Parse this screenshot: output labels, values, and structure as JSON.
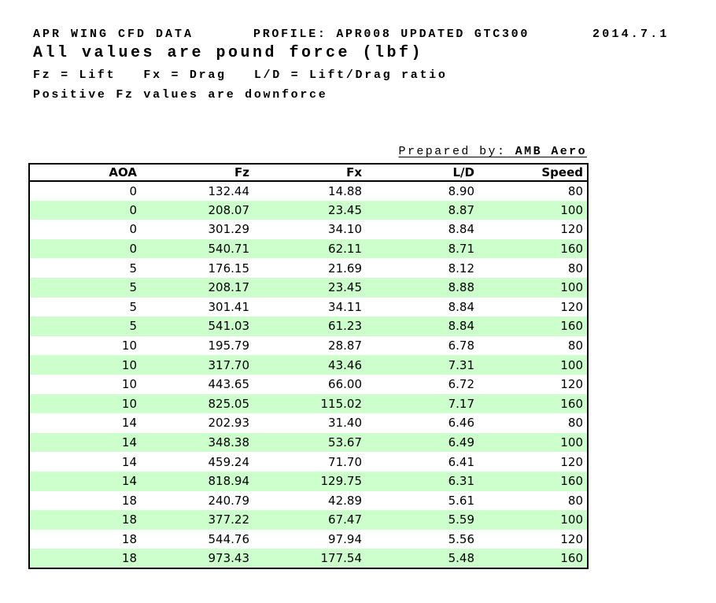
{
  "doc": {
    "title_left": "APR WING CFD DATA",
    "title_profile": "PROFILE: APR008 UPDATED GTC300",
    "title_date": "2014.7.1",
    "subtitle": "All values are pound force (lbf)",
    "legend": "Fz = Lift   Fx = Drag   L/D = Lift/Drag ratio",
    "note": "Positive Fz values are downforce",
    "prepared_by_label": "Prepared by:",
    "prepared_by_value": " AMB Aero"
  },
  "table": {
    "columns": [
      "AOA",
      "Fz",
      "Fx",
      "L/D",
      "Speed"
    ],
    "rows": [
      [
        "0",
        "132.44",
        "14.88",
        "8.90",
        "80"
      ],
      [
        "0",
        "208.07",
        "23.45",
        "8.87",
        "100"
      ],
      [
        "0",
        "301.29",
        "34.10",
        "8.84",
        "120"
      ],
      [
        "0",
        "540.71",
        "62.11",
        "8.71",
        "160"
      ],
      [
        "5",
        "176.15",
        "21.69",
        "8.12",
        "80"
      ],
      [
        "5",
        "208.17",
        "23.45",
        "8.88",
        "100"
      ],
      [
        "5",
        "301.41",
        "34.11",
        "8.84",
        "120"
      ],
      [
        "5",
        "541.03",
        "61.23",
        "8.84",
        "160"
      ],
      [
        "10",
        "195.79",
        "28.87",
        "6.78",
        "80"
      ],
      [
        "10",
        "317.70",
        "43.46",
        "7.31",
        "100"
      ],
      [
        "10",
        "443.65",
        "66.00",
        "6.72",
        "120"
      ],
      [
        "10",
        "825.05",
        "115.02",
        "7.17",
        "160"
      ],
      [
        "14",
        "202.93",
        "31.40",
        "6.46",
        "80"
      ],
      [
        "14",
        "348.38",
        "53.67",
        "6.49",
        "100"
      ],
      [
        "14",
        "459.24",
        "71.70",
        "6.41",
        "120"
      ],
      [
        "14",
        "818.94",
        "129.75",
        "6.31",
        "160"
      ],
      [
        "18",
        "240.79",
        "42.89",
        "5.61",
        "80"
      ],
      [
        "18",
        "377.22",
        "67.47",
        "5.59",
        "100"
      ],
      [
        "18",
        "544.76",
        "97.94",
        "5.56",
        "120"
      ],
      [
        "18",
        "973.43",
        "177.54",
        "5.48",
        "160"
      ]
    ]
  },
  "colors": {
    "row_alt_green": "#ccffcc",
    "border_black": "#000000",
    "text_black": "#000000"
  }
}
